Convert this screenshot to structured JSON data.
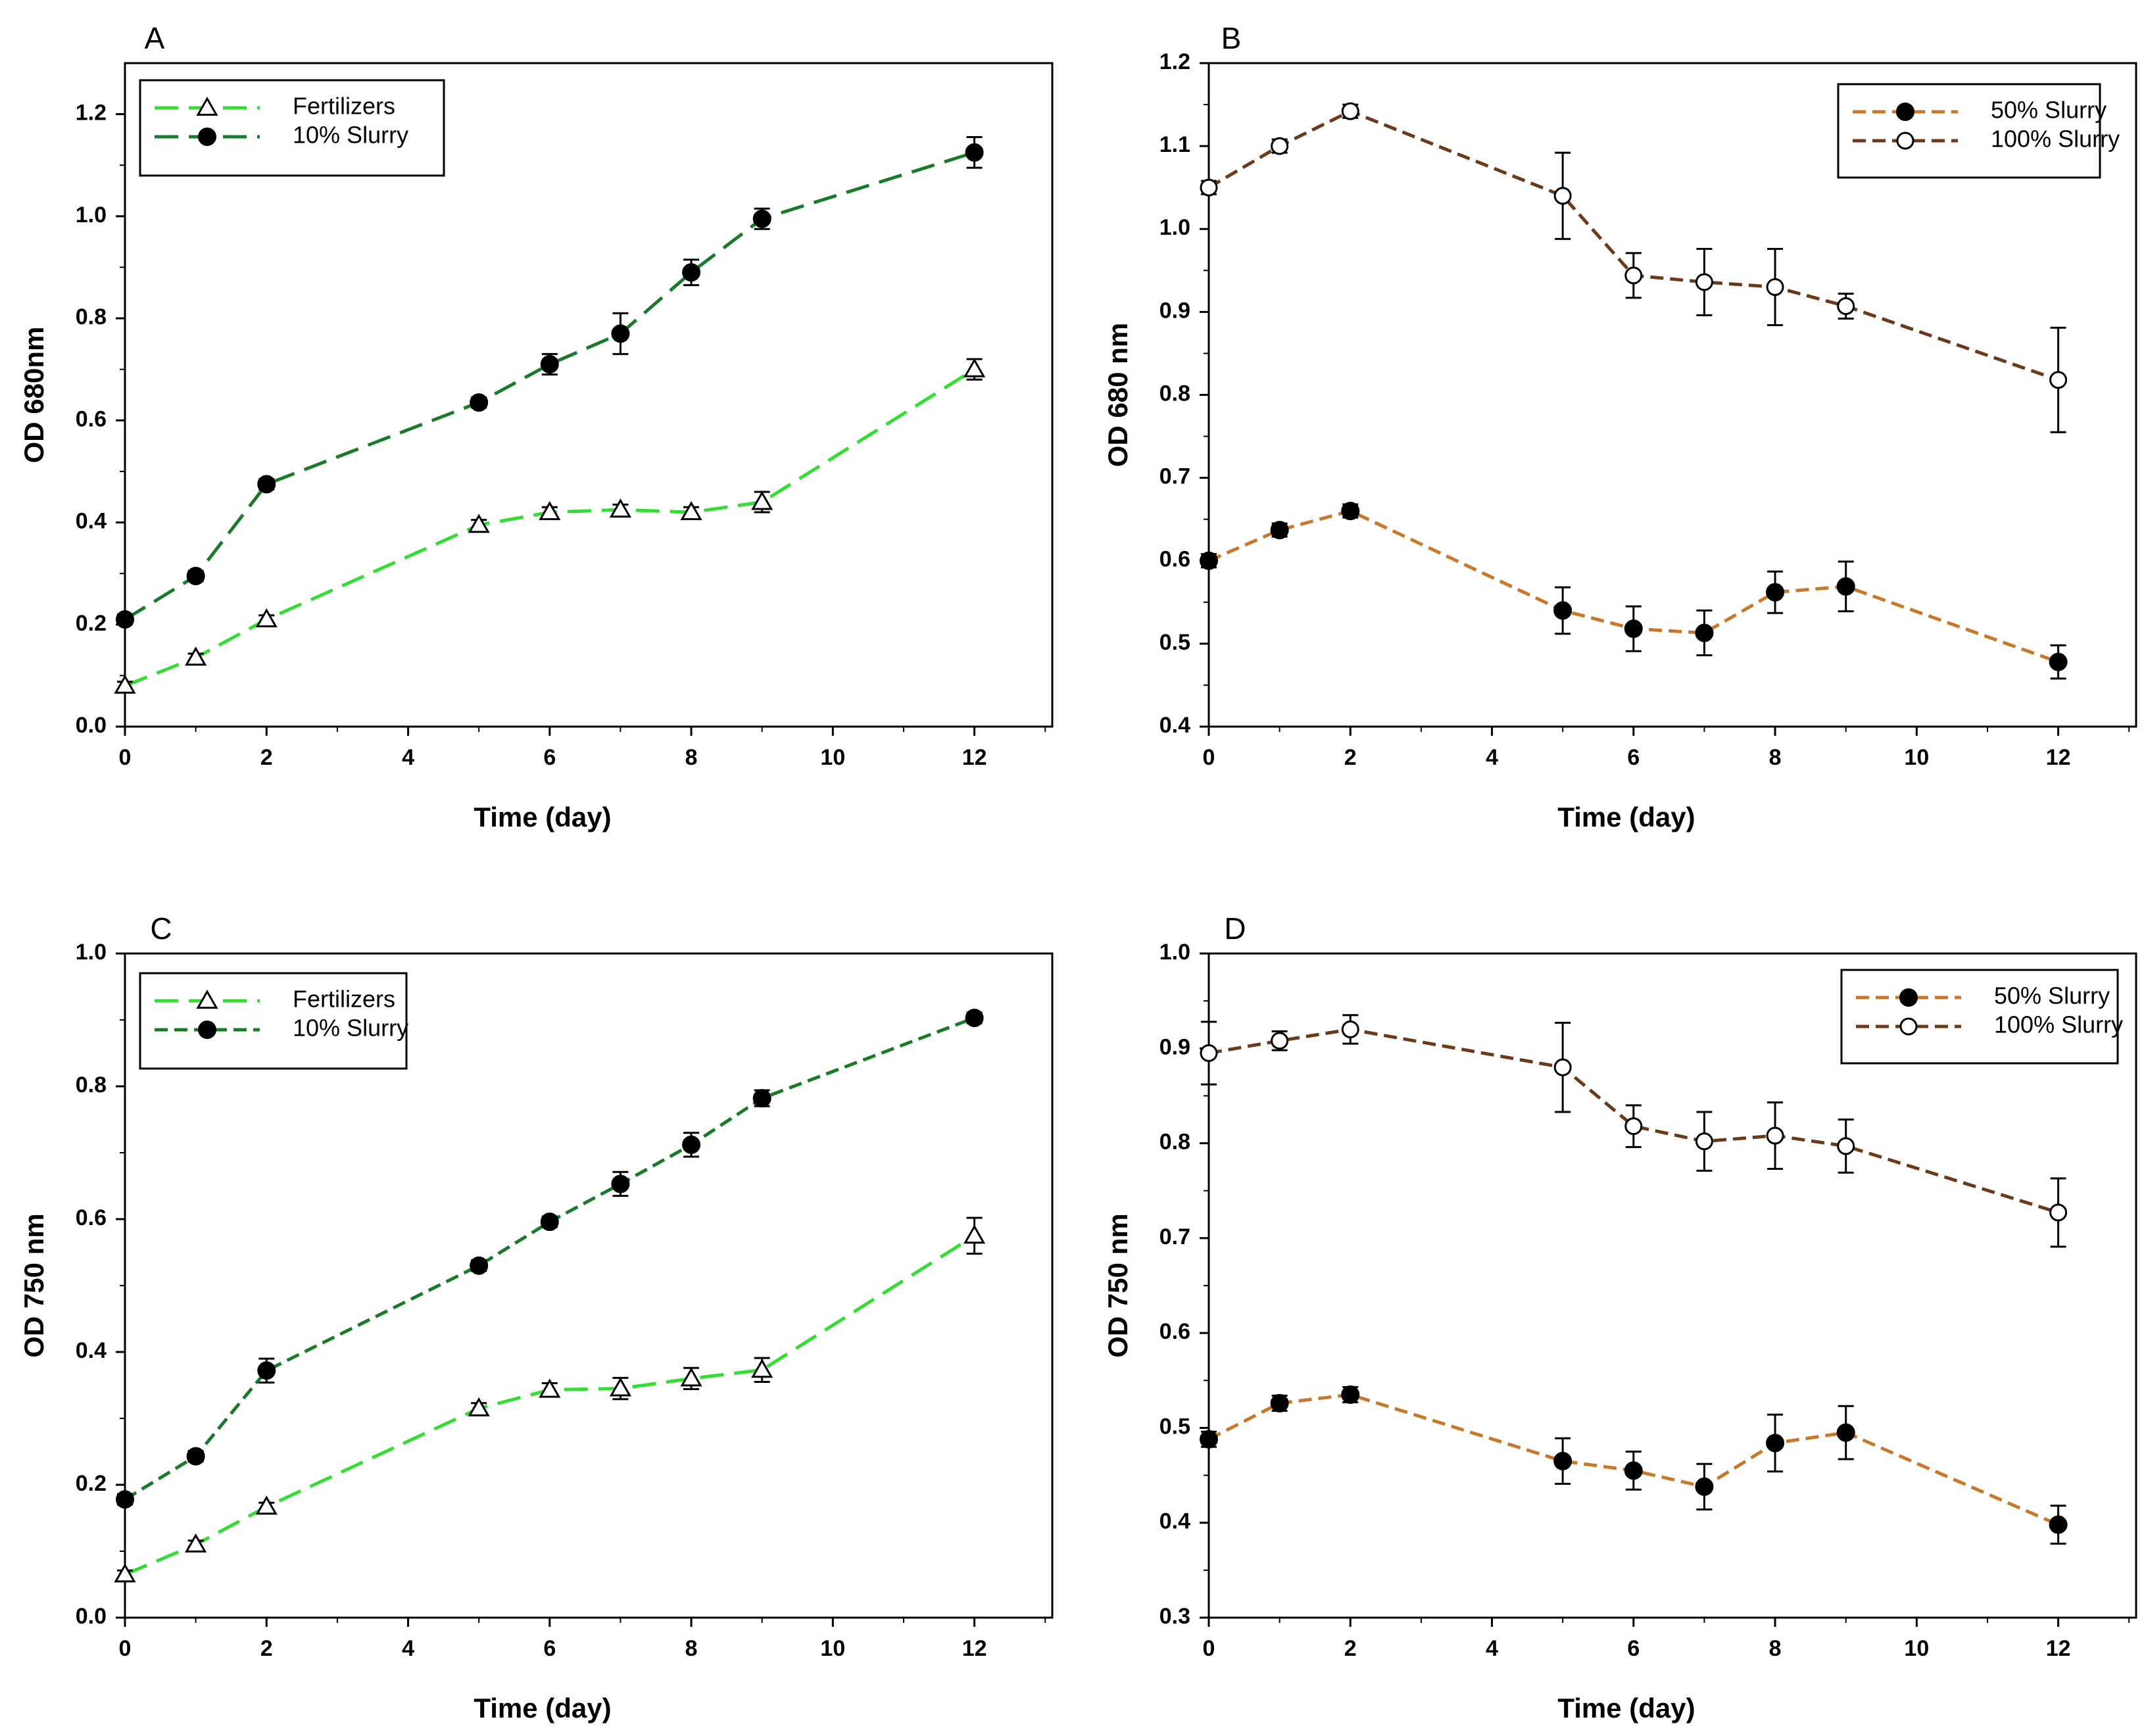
{
  "chart_data": [
    {
      "panel": "A",
      "type": "line",
      "xlabel": "Time (day)",
      "ylabel": "OD 680nm",
      "xlim": [
        0,
        13.1
      ],
      "ylim": [
        0,
        1.3
      ],
      "xticks": [
        0,
        2,
        4,
        6,
        8,
        10,
        12
      ],
      "yticks": [
        0.0,
        0.2,
        0.4,
        0.6,
        0.8,
        1.0,
        1.2
      ],
      "ytick_labels": [
        "0.0",
        "0.2",
        "0.4",
        "0.6",
        "0.8",
        "1.0",
        "1.2"
      ],
      "legend_position": "top-left",
      "series": [
        {
          "name": "Fertilizers",
          "color": "#33dd33",
          "marker": "open-triangle",
          "dash": "long",
          "x": [
            0,
            1,
            2,
            5,
            6,
            7,
            8,
            9,
            12
          ],
          "values": [
            0.08,
            0.135,
            0.21,
            0.395,
            0.42,
            0.425,
            0.42,
            0.44,
            0.7
          ],
          "errors": [
            0.008,
            0.008,
            0.008,
            0.01,
            0.01,
            0.01,
            0.01,
            0.02,
            0.02
          ]
        },
        {
          "name": "10% Slurry",
          "color": "#1a7a2a",
          "marker": "filled-circle",
          "dash": "long",
          "x": [
            0,
            1,
            2,
            5,
            6,
            7,
            8,
            9,
            12
          ],
          "values": [
            0.21,
            0.295,
            0.475,
            0.635,
            0.71,
            0.77,
            0.89,
            0.995,
            1.125
          ],
          "errors": [
            0.01,
            0.01,
            0.01,
            0.01,
            0.02,
            0.04,
            0.025,
            0.02,
            0.03
          ]
        }
      ]
    },
    {
      "panel": "B",
      "type": "line",
      "xlabel": "Time (day)",
      "ylabel": "OD 680 nm",
      "xlim": [
        0,
        13.1
      ],
      "ylim": [
        0.4,
        1.2
      ],
      "xticks": [
        0,
        2,
        4,
        6,
        8,
        10,
        12
      ],
      "yticks": [
        0.4,
        0.5,
        0.6,
        0.7,
        0.8,
        0.9,
        1.0,
        1.1,
        1.2
      ],
      "ytick_labels": [
        "0.4",
        "0.5",
        "0.6",
        "0.7",
        "0.8",
        "0.9",
        "1.0",
        "1.1",
        "1.2"
      ],
      "legend_position": "top-right",
      "series": [
        {
          "name": "50% Slurry",
          "color": "#c8782a",
          "marker": "filled-circle",
          "dash": "medium",
          "x": [
            0,
            1,
            2,
            5,
            6,
            7,
            8,
            9,
            12
          ],
          "values": [
            0.6,
            0.637,
            0.66,
            0.54,
            0.518,
            0.513,
            0.562,
            0.569,
            0.478
          ],
          "errors": [
            0.008,
            0.008,
            0.008,
            0.028,
            0.027,
            0.027,
            0.025,
            0.03,
            0.02
          ]
        },
        {
          "name": "100% Slurry",
          "color": "#6b3a1a",
          "marker": "open-circle",
          "dash": "medium",
          "x": [
            0,
            1,
            2,
            5,
            6,
            7,
            8,
            9,
            12
          ],
          "values": [
            1.05,
            1.1,
            1.142,
            1.04,
            0.944,
            0.936,
            0.93,
            0.907,
            0.818
          ],
          "errors": [
            0.008,
            0.008,
            0.008,
            0.052,
            0.027,
            0.04,
            0.046,
            0.015,
            0.063
          ]
        }
      ]
    },
    {
      "panel": "C",
      "type": "line",
      "xlabel": "Time (day)",
      "ylabel": "OD 750 nm",
      "xlim": [
        0,
        13.1
      ],
      "ylim": [
        0,
        1.0
      ],
      "xticks": [
        0,
        2,
        4,
        6,
        8,
        10,
        12
      ],
      "yticks": [
        0.0,
        0.2,
        0.4,
        0.6,
        0.8,
        1.0
      ],
      "ytick_labels": [
        "0.0",
        "0.2",
        "0.4",
        "0.6",
        "0.8",
        "1.0"
      ],
      "legend_position": "top-left",
      "series": [
        {
          "name": "Fertilizers",
          "color": "#33dd33",
          "marker": "open-triangle",
          "dash": "long",
          "x": [
            0,
            1,
            2,
            5,
            6,
            7,
            8,
            9,
            12
          ],
          "values": [
            0.065,
            0.11,
            0.167,
            0.315,
            0.343,
            0.345,
            0.36,
            0.373,
            0.575
          ],
          "errors": [
            0.006,
            0.006,
            0.006,
            0.008,
            0.01,
            0.016,
            0.016,
            0.018,
            0.027
          ]
        },
        {
          "name": "10% Slurry",
          "color": "#1a7a2a",
          "marker": "filled-circle",
          "dash": "medium",
          "x": [
            0,
            1,
            2,
            5,
            6,
            7,
            8,
            9,
            12
          ],
          "values": [
            0.178,
            0.243,
            0.372,
            0.53,
            0.596,
            0.653,
            0.712,
            0.782,
            0.903
          ],
          "errors": [
            0.008,
            0.008,
            0.018,
            0.008,
            0.008,
            0.018,
            0.018,
            0.012,
            0.008
          ]
        }
      ]
    },
    {
      "panel": "D",
      "type": "line",
      "xlabel": "Time (day)",
      "ylabel": "OD 750 nm",
      "xlim": [
        0,
        13.1
      ],
      "ylim": [
        0.3,
        1.0
      ],
      "xticks": [
        0,
        2,
        4,
        6,
        8,
        10,
        12
      ],
      "yticks": [
        0.3,
        0.4,
        0.5,
        0.6,
        0.7,
        0.8,
        0.9,
        1.0
      ],
      "ytick_labels": [
        "0.3",
        "0.4",
        "0.5",
        "0.6",
        "0.7",
        "0.8",
        "0.9",
        "1.0"
      ],
      "legend_position": "top-right",
      "series": [
        {
          "name": "50% Slurry",
          "color": "#c8782a",
          "marker": "filled-circle",
          "dash": "medium",
          "x": [
            0,
            1,
            2,
            5,
            6,
            7,
            8,
            9,
            12
          ],
          "values": [
            0.488,
            0.526,
            0.535,
            0.465,
            0.455,
            0.438,
            0.484,
            0.495,
            0.398
          ],
          "errors": [
            0.008,
            0.008,
            0.008,
            0.024,
            0.02,
            0.024,
            0.03,
            0.028,
            0.02
          ]
        },
        {
          "name": "100% Slurry",
          "color": "#6b3a1a",
          "marker": "open-circle",
          "dash": "medium",
          "x": [
            0,
            1,
            2,
            5,
            6,
            7,
            8,
            9,
            12
          ],
          "values": [
            0.895,
            0.908,
            0.92,
            0.88,
            0.818,
            0.802,
            0.808,
            0.797,
            0.727
          ],
          "errors": [
            0.033,
            0.01,
            0.015,
            0.047,
            0.022,
            0.031,
            0.035,
            0.028,
            0.036
          ]
        }
      ]
    }
  ]
}
